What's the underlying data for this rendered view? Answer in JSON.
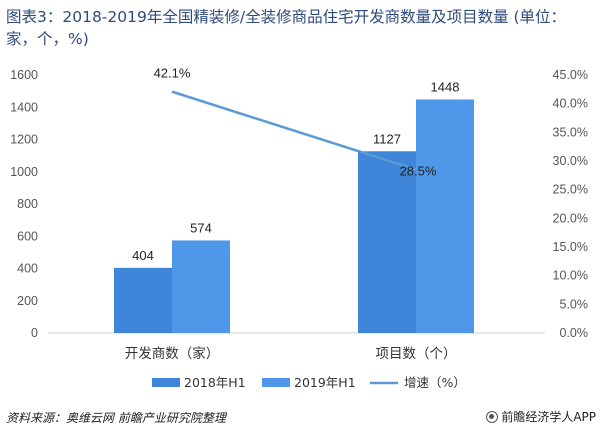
{
  "title": "图表3：2018-2019年全国精装修/全装修商品住宅开发商数量及项目数量 (单位：家，个，%)",
  "source": "资料来源：奥维云网 前瞻产业研究院整理",
  "brand": "前瞻经济学人APP",
  "colors": {
    "series_2018": "#3f86db",
    "series_2019": "#4f97e8",
    "line": "#5b9bd5",
    "axis_text": "#555555",
    "baseline": "#d0d0d0"
  },
  "chart_data": {
    "type": "bar",
    "categories": [
      "开发商数（家）",
      "项目数（个）"
    ],
    "series": [
      {
        "name": "2018年H1",
        "values": [
          404,
          1127
        ],
        "kind": "bar",
        "axis": "left"
      },
      {
        "name": "2019年H1",
        "values": [
          574,
          1448
        ],
        "kind": "bar",
        "axis": "left"
      },
      {
        "name": "增速（%）",
        "values": [
          42.1,
          28.5
        ],
        "kind": "line",
        "axis": "right"
      }
    ],
    "data_labels": {
      "2018年H1": [
        "404",
        "1127"
      ],
      "2019年H1": [
        "574",
        "1448"
      ],
      "增速（%）": [
        "42.1%",
        "28.5%"
      ]
    },
    "y_left": {
      "min": 0,
      "max": 1600,
      "ticks": [
        "0",
        "200",
        "400",
        "600",
        "800",
        "1000",
        "1200",
        "1400",
        "1600"
      ]
    },
    "y_right": {
      "min": 0,
      "max": 45,
      "ticks": [
        "0.0%",
        "5.0%",
        "10.0%",
        "15.0%",
        "20.0%",
        "25.0%",
        "30.0%",
        "35.0%",
        "40.0%",
        "45.0%"
      ]
    },
    "grid": false,
    "legend_position": "bottom"
  }
}
